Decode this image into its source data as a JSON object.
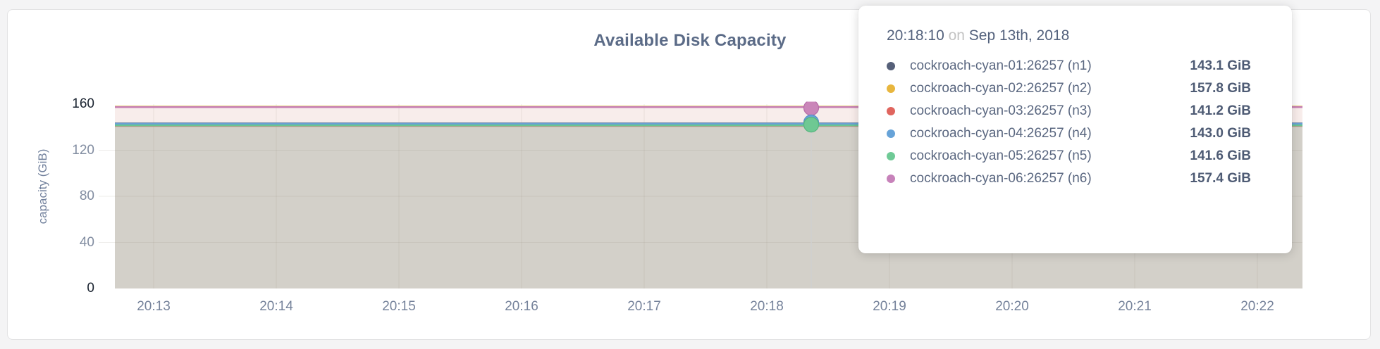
{
  "page": {
    "background": "#f4f4f5",
    "card_background": "#ffffff"
  },
  "chart_data": {
    "type": "area",
    "title": "Available Disk Capacity",
    "ylabel": "capacity (GiB)",
    "xlabel": "",
    "ylim": [
      0,
      160
    ],
    "y_ticks": [
      0,
      40,
      80,
      120,
      160
    ],
    "x_ticks": [
      "20:13",
      "20:14",
      "20:15",
      "20:16",
      "20:17",
      "20:18",
      "20:19",
      "20:20",
      "20:21",
      "20:22"
    ],
    "grid": true,
    "legend_position": "tooltip",
    "series": [
      {
        "node": "n1",
        "name": "cockroach-cyan-01:26257 (n1)",
        "value": 143.1,
        "value_label": "143.1 GiB",
        "dot_color": "#566079",
        "line_color": "#5c6680"
      },
      {
        "node": "n2",
        "name": "cockroach-cyan-02:26257 (n2)",
        "value": 157.8,
        "value_label": "157.8 GiB",
        "dot_color": "#e8b63e",
        "line_color": "#d8b13c"
      },
      {
        "node": "n3",
        "name": "cockroach-cyan-03:26257 (n3)",
        "value": 141.2,
        "value_label": "141.2 GiB",
        "dot_color": "#e0655e",
        "line_color": "#c28d80"
      },
      {
        "node": "n4",
        "name": "cockroach-cyan-04:26257 (n4)",
        "value": 143.0,
        "value_label": "143.0 GiB",
        "dot_color": "#67a3d8",
        "line_color": "#6aa0d3"
      },
      {
        "node": "n5",
        "name": "cockroach-cyan-05:26257 (n5)",
        "value": 141.6,
        "value_label": "141.6 GiB",
        "dot_color": "#6fca96",
        "line_color": "#69c592"
      },
      {
        "node": "n6",
        "name": "cockroach-cyan-06:26257 (n6)",
        "value": 157.4,
        "value_label": "157.4 GiB",
        "dot_color": "#c782ba",
        "line_color": "#c77fb4"
      }
    ],
    "hover": {
      "time": "20:18:10",
      "connector": "on",
      "date": "Sep 13th, 2018"
    },
    "colors": {
      "band_upper": "#f8edeb",
      "band_lower": "#d3d0c9",
      "grid": "#8d867c",
      "guideline": "#cfcfcf",
      "marker_pink": "#ca86b9",
      "marker_pink_stroke": "#b56da7",
      "marker_blue": "#67a3d8",
      "marker_blue_stroke": "#5590c7",
      "marker_green": "#6fc893",
      "marker_green_stroke": "#57b57f"
    }
  }
}
